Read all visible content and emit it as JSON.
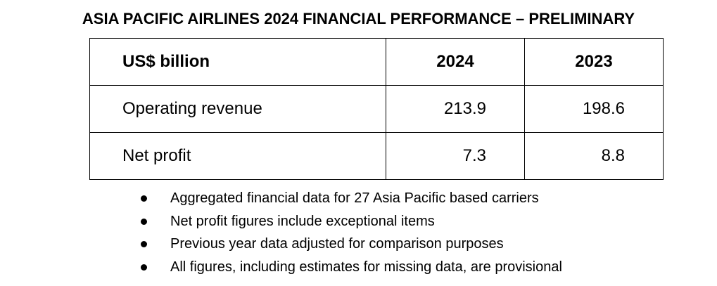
{
  "title": "ASIA PACIFIC AIRLINES 2024 FINANCIAL PERFORMANCE – PRELIMINARY",
  "table": {
    "header": {
      "label": "US$ billion",
      "col_2024": "2024",
      "col_2023": "2023"
    },
    "rows": [
      {
        "label": "Operating revenue",
        "v2024": "213.9",
        "v2023": "198.6"
      },
      {
        "label": "Net profit",
        "v2024": "7.3",
        "v2023": "8.8"
      }
    ]
  },
  "notes": [
    "Aggregated financial data for 27 Asia Pacific based carriers",
    "Net profit figures include exceptional items",
    "Previous year data adjusted for comparison purposes",
    "All figures, including estimates for missing data, are provisional"
  ]
}
